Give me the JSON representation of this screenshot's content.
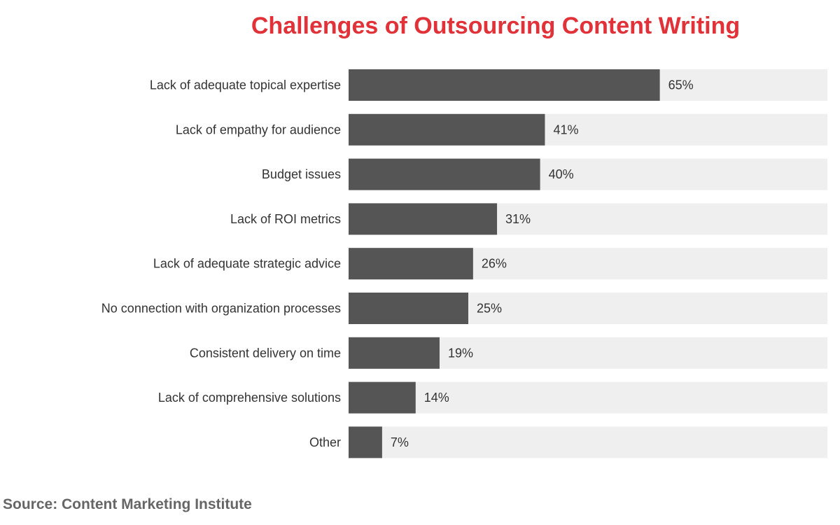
{
  "chart_data": {
    "type": "bar",
    "orientation": "horizontal",
    "title": "Challenges of Outsourcing Content Writing",
    "categories": [
      "Lack of adequate topical expertise",
      "Lack of empathy for audience",
      "Budget issues",
      "Lack of ROI metrics",
      "Lack of adequate strategic advice",
      "No connection with organization processes",
      "Consistent delivery on time",
      "Lack of comprehensive solutions",
      "Other"
    ],
    "values": [
      65,
      41,
      40,
      31,
      26,
      25,
      19,
      14,
      7
    ],
    "value_labels": [
      "65%",
      "41%",
      "40%",
      "31%",
      "26%",
      "25%",
      "19%",
      "14%",
      "7%"
    ],
    "xlim": [
      0,
      100
    ],
    "xlabel": "",
    "ylabel": "",
    "grid": false,
    "legend": "none"
  },
  "source": "Source: Content Marketing Institute",
  "colors": {
    "title": "#e03238",
    "bar": "#555555",
    "track": "#efefef",
    "label": "#333333",
    "source": "#666666"
  }
}
